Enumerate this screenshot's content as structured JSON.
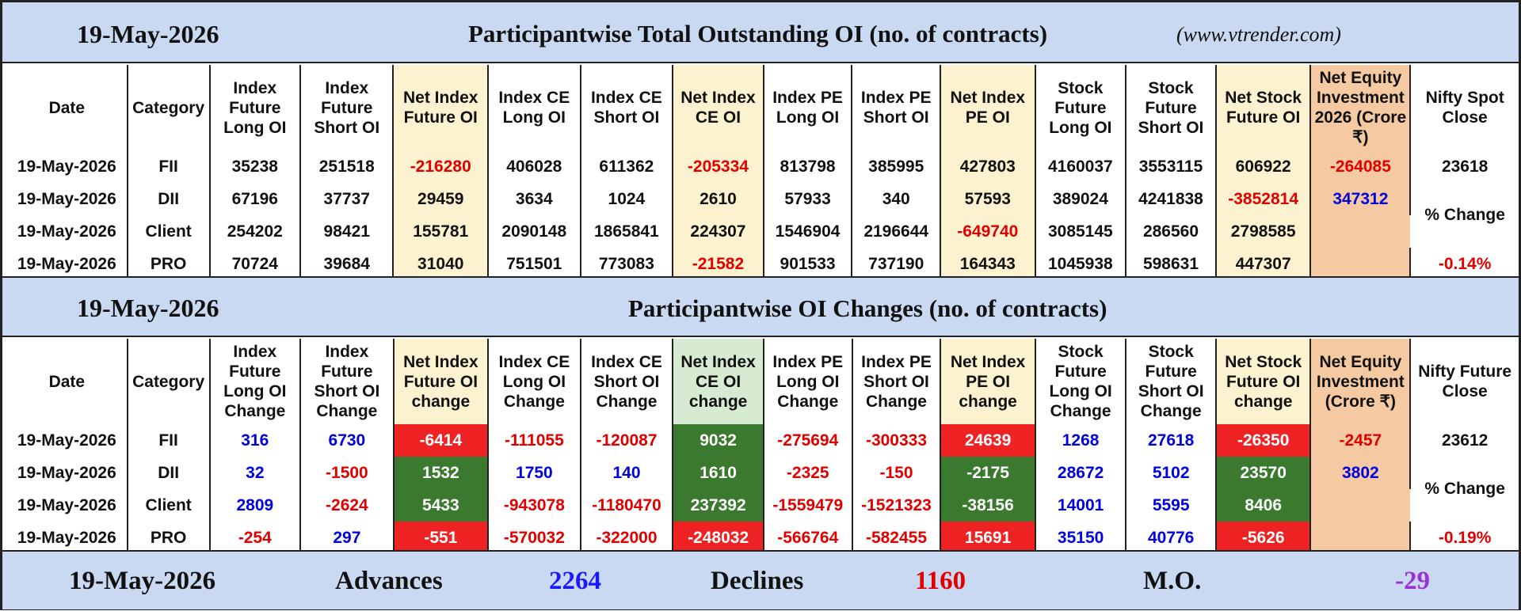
{
  "section1": {
    "date": "19-May-2026",
    "title": "Participantwise Total Outstanding OI (no. of contracts)",
    "site": "(www.vtrender.com)",
    "headers": [
      "Date",
      "Category",
      "Index Future Long OI",
      "Index Future Short OI",
      "Net Index Future OI",
      "Index CE Long OI",
      "Index CE Short OI",
      "Net Index CE OI",
      "Index PE Long OI",
      "Index PE Short OI",
      "Net Index PE OI",
      "Stock Future Long OI",
      "Stock Future Short OI",
      "Net Stock Future OI",
      "Net Equity Investment 2026 (Crore ₹)",
      "Nifty Spot Close"
    ],
    "rows": [
      [
        "19-May-2026",
        "FII",
        "35238",
        "251518",
        "-216280",
        "406028",
        "611362",
        "-205334",
        "813798",
        "385995",
        "427803",
        "4160037",
        "3553115",
        "606922",
        "-264085"
      ],
      [
        "19-May-2026",
        "DII",
        "67196",
        "37737",
        "29459",
        "3634",
        "1024",
        "2610",
        "57933",
        "340",
        "57593",
        "389024",
        "4241838",
        "-3852814",
        "347312"
      ],
      [
        "19-May-2026",
        "Client",
        "254202",
        "98421",
        "155781",
        "2090148",
        "1865841",
        "224307",
        "1546904",
        "2196644",
        "-649740",
        "3085145",
        "286560",
        "2798585",
        ""
      ],
      [
        "19-May-2026",
        "PRO",
        "70724",
        "39684",
        "31040",
        "751501",
        "773083",
        "-21582",
        "901533",
        "737190",
        "164343",
        "1045938",
        "598631",
        "447307",
        ""
      ]
    ],
    "nifty_value": "23618",
    "change_label": "% Change",
    "change_value": "-0.14%"
  },
  "section2": {
    "date": "19-May-2026",
    "title": "Participantwise OI Changes (no. of contracts)",
    "headers": [
      "Date",
      "Category",
      "Index Future Long OI Change",
      "Index Future Short OI Change",
      "Net Index Future OI change",
      "Index CE Long OI Change",
      "Index CE Short OI Change",
      "Net Index CE OI change",
      "Index PE Long OI Change",
      "Index PE Short OI Change",
      "Net Index PE OI change",
      "Stock Future Long OI Change",
      "Stock Future Short OI Change",
      "Net Stock Future OI change",
      "Net Equity Investment (Crore ₹)",
      "Nifty Future Close"
    ],
    "rows": [
      [
        "19-May-2026",
        "FII",
        "316",
        "6730",
        "-6414",
        "-111055",
        "-120087",
        "9032",
        "-275694",
        "-300333",
        "24639",
        "1268",
        "27618",
        "-26350",
        "-2457"
      ],
      [
        "19-May-2026",
        "DII",
        "32",
        "-1500",
        "1532",
        "1750",
        "140",
        "1610",
        "-2325",
        "-150",
        "-2175",
        "28672",
        "5102",
        "23570",
        "3802"
      ],
      [
        "19-May-2026",
        "Client",
        "2809",
        "-2624",
        "5433",
        "-943078",
        "-1180470",
        "237392",
        "-1559479",
        "-1521323",
        "-38156",
        "14001",
        "5595",
        "8406",
        ""
      ],
      [
        "19-May-2026",
        "PRO",
        "-254",
        "297",
        "-551",
        "-570032",
        "-322000",
        "-248032",
        "-566764",
        "-582455",
        "15691",
        "35150",
        "40776",
        "-5626",
        ""
      ]
    ],
    "nifty_value": "23612",
    "change_label": "% Change",
    "change_value": "-0.19%"
  },
  "footer": {
    "date": "19-May-2026",
    "advances_label": "Advances",
    "advances_value": "2264",
    "declines_label": "Declines",
    "declines_value": "1160",
    "mo_label": "M.O.",
    "mo_value": "-29"
  },
  "colors": {
    "band_blue": "#c9d9f2",
    "net_highlight_yellow": "#fdf2d0",
    "equity_orange": "#f5c9a1",
    "positive_green": "#3b7a2e",
    "negative_red": "#ee2222",
    "text_red": "#e00000",
    "text_blue": "#0000dd",
    "mo_purple": "#9b30d9"
  }
}
